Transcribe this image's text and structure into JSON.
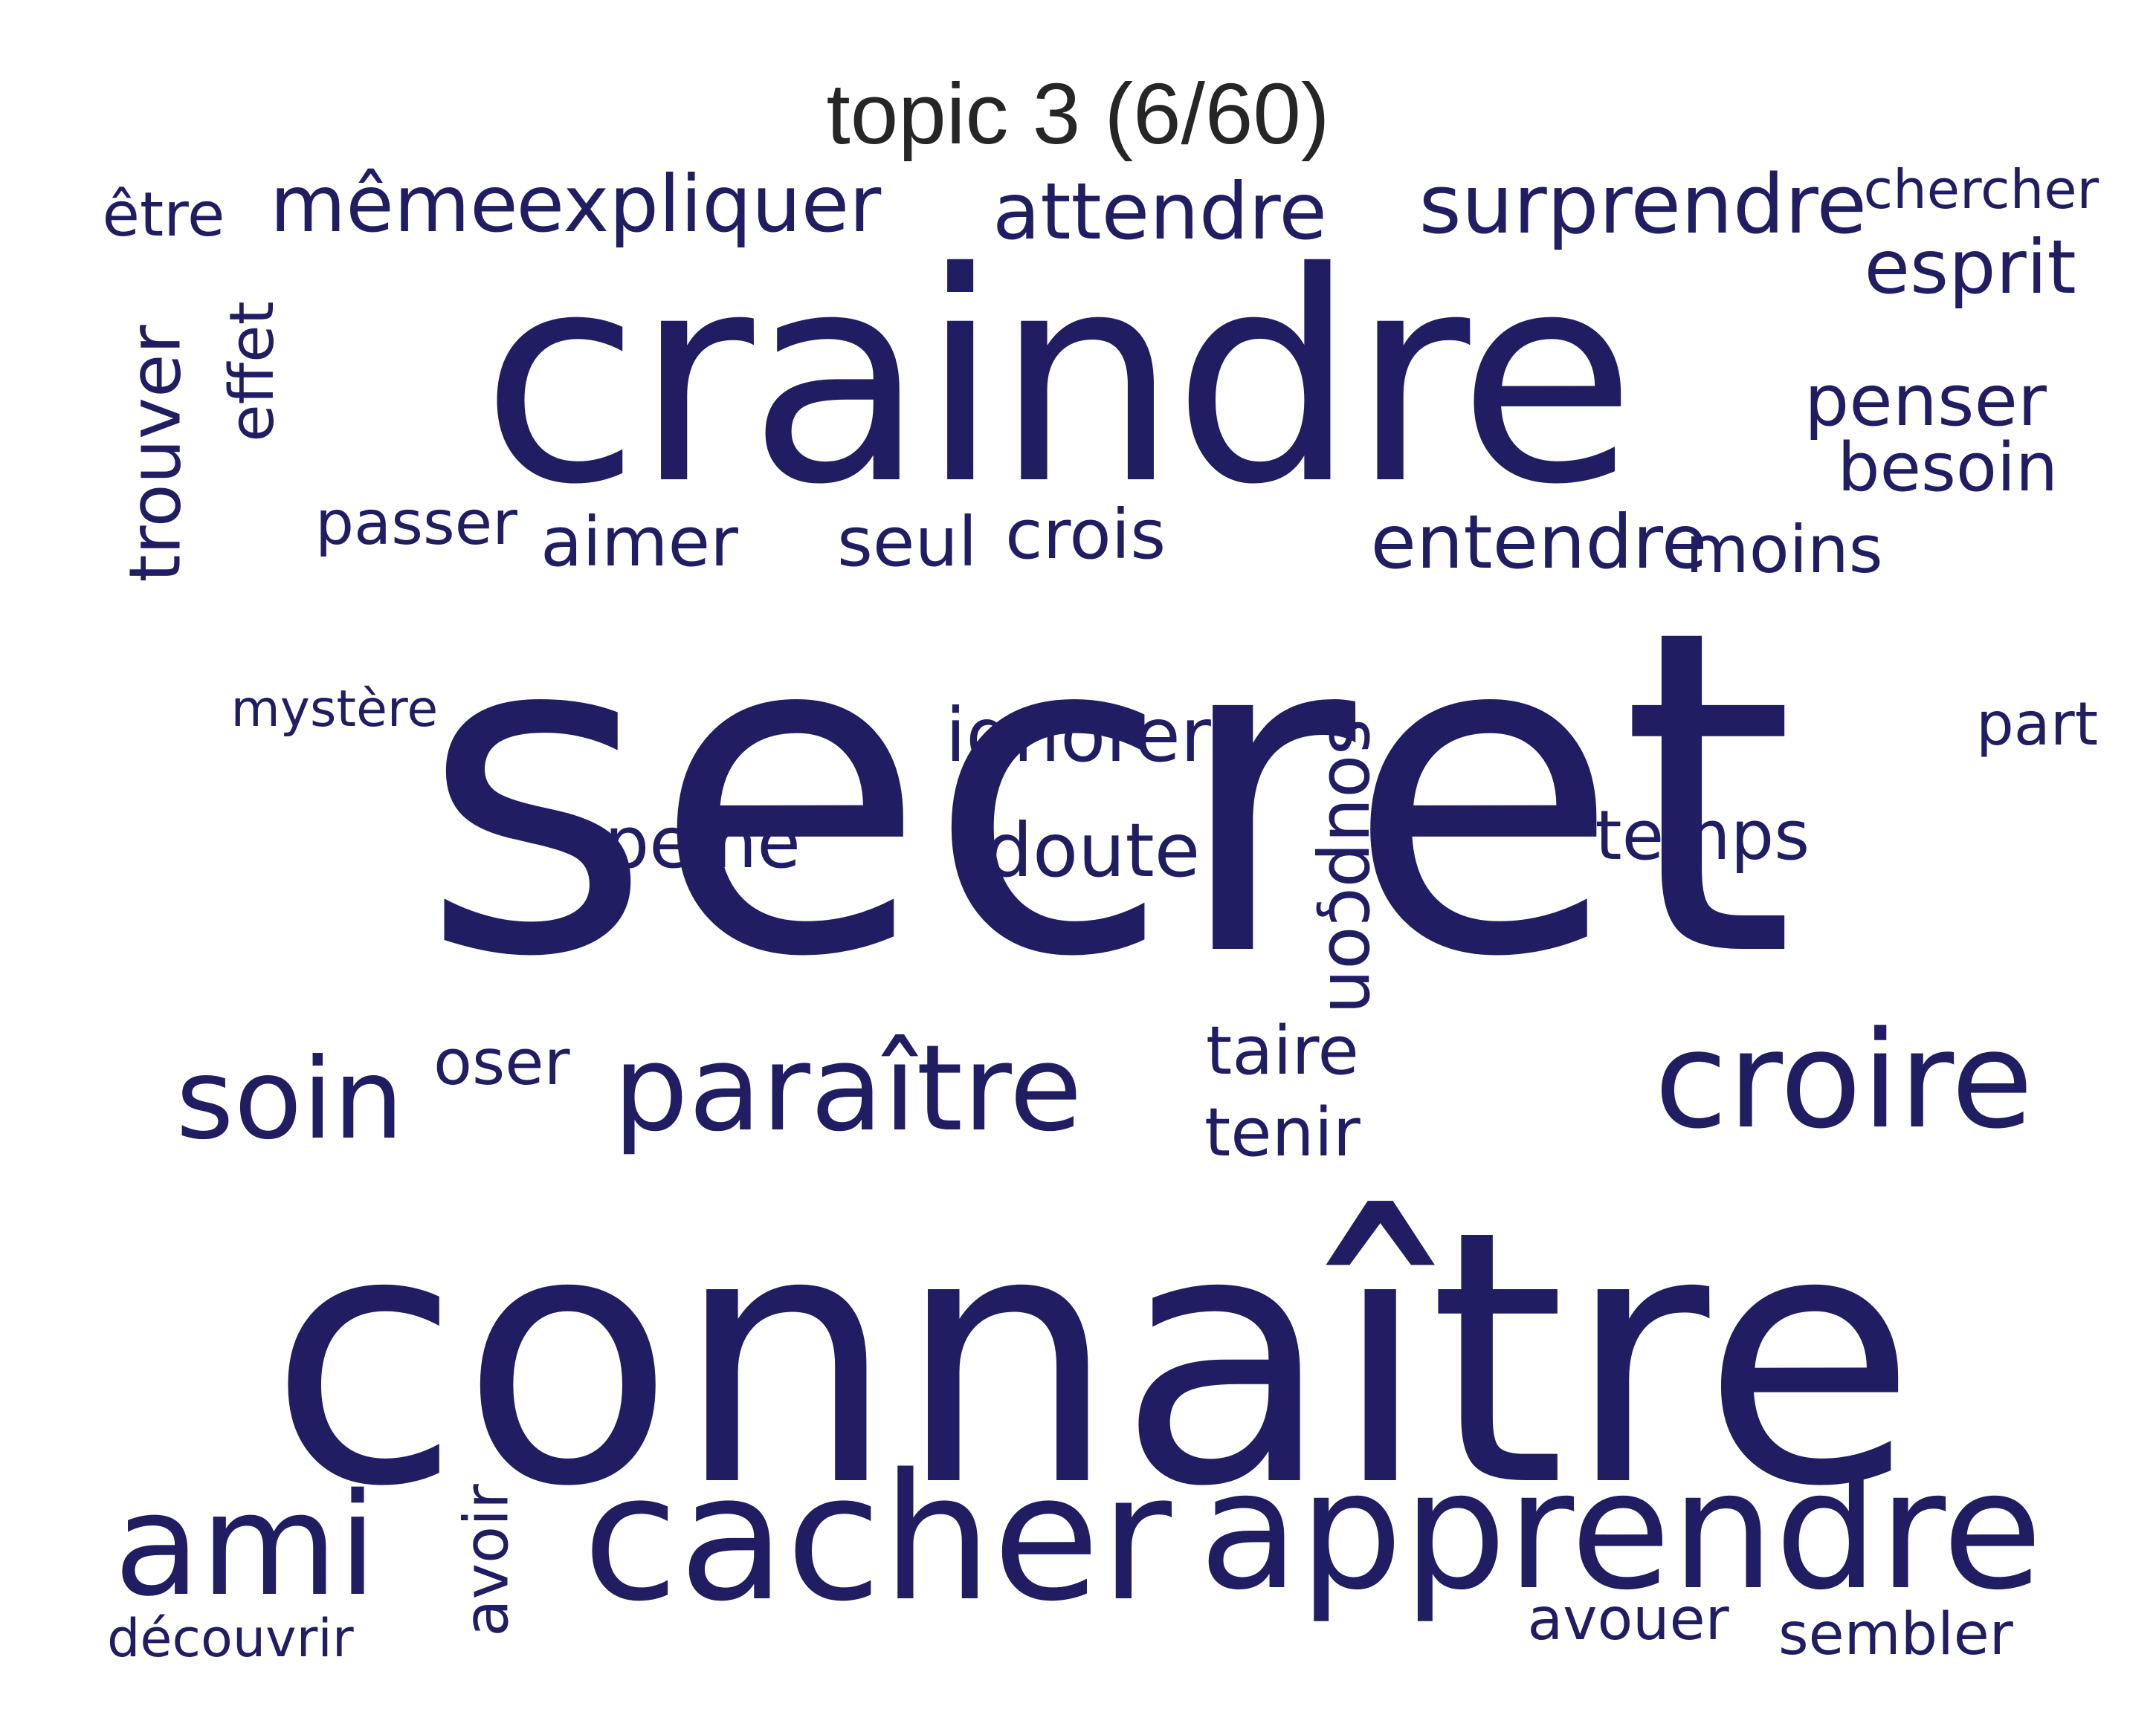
{
  "title": "topic 3 (6/60)",
  "word_color": "#201d63",
  "words": [
    {
      "text": "secret",
      "weight": 1.0
    },
    {
      "text": "connaître",
      "weight": 0.76
    },
    {
      "text": "craindre",
      "weight": 0.62
    },
    {
      "text": "cacher",
      "weight": 0.38
    },
    {
      "text": "apprendre",
      "weight": 0.35
    },
    {
      "text": "ami",
      "weight": 0.3
    },
    {
      "text": "croire",
      "weight": 0.29
    },
    {
      "text": "paraître",
      "weight": 0.26
    },
    {
      "text": "soin",
      "weight": 0.25
    },
    {
      "text": "surprendre",
      "weight": 0.18
    },
    {
      "text": "attendre",
      "weight": 0.18
    },
    {
      "text": "expliquer",
      "weight": 0.18
    },
    {
      "text": "même",
      "weight": 0.18
    },
    {
      "text": "ignorer",
      "weight": 0.17
    },
    {
      "text": "doute",
      "weight": 0.17
    },
    {
      "text": "entendre",
      "weight": 0.17
    },
    {
      "text": "esprit",
      "weight": 0.16
    },
    {
      "text": "peine",
      "weight": 0.16
    },
    {
      "text": "temps",
      "weight": 0.15
    },
    {
      "text": "crois",
      "weight": 0.15
    },
    {
      "text": "seul",
      "weight": 0.15
    },
    {
      "text": "aimer",
      "weight": 0.15
    },
    {
      "text": "penser",
      "weight": 0.15
    },
    {
      "text": "soupçon",
      "weight": 0.15
    },
    {
      "text": "trouver",
      "weight": 0.15
    },
    {
      "text": "taire",
      "weight": 0.15
    },
    {
      "text": "tenir",
      "weight": 0.15
    },
    {
      "text": "besoin",
      "weight": 0.14
    },
    {
      "text": "moins",
      "weight": 0.14
    },
    {
      "text": "oser",
      "weight": 0.13
    },
    {
      "text": "effet",
      "weight": 0.13
    },
    {
      "text": "passer",
      "weight": 0.13
    },
    {
      "text": "avoir",
      "weight": 0.13
    },
    {
      "text": "être",
      "weight": 0.13
    },
    {
      "text": "sembler",
      "weight": 0.13
    },
    {
      "text": "avouer",
      "weight": 0.13
    },
    {
      "text": "part",
      "weight": 0.13
    },
    {
      "text": "chercher",
      "weight": 0.12
    },
    {
      "text": "découvrir",
      "weight": 0.11
    },
    {
      "text": "mystère",
      "weight": 0.11
    }
  ]
}
